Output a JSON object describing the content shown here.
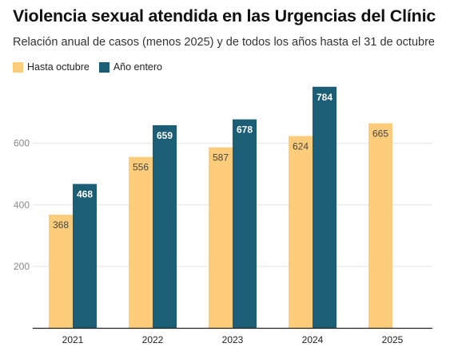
{
  "chart_data": {
    "type": "bar",
    "title": "Violencia sexual atendida en las Urgencias del Clínic",
    "subtitle": "Relación anual de casos (menos 2025) y de todos los años hasta el 31 de octubre",
    "categories": [
      "2021",
      "2022",
      "2023",
      "2024",
      "2025"
    ],
    "series": [
      {
        "name": "Hasta octubre",
        "color": "#fdcd7b",
        "label_color": "#444444",
        "values": [
          368,
          556,
          587,
          624,
          665
        ]
      },
      {
        "name": "Año entero",
        "color": "#1b5e75",
        "label_color": "#ffffff",
        "values": [
          468,
          659,
          678,
          784,
          null
        ]
      }
    ],
    "y_ticks": [
      200,
      400,
      600
    ],
    "ylim": [
      0,
      800
    ],
    "grid": true,
    "legend_position": "top-left"
  }
}
